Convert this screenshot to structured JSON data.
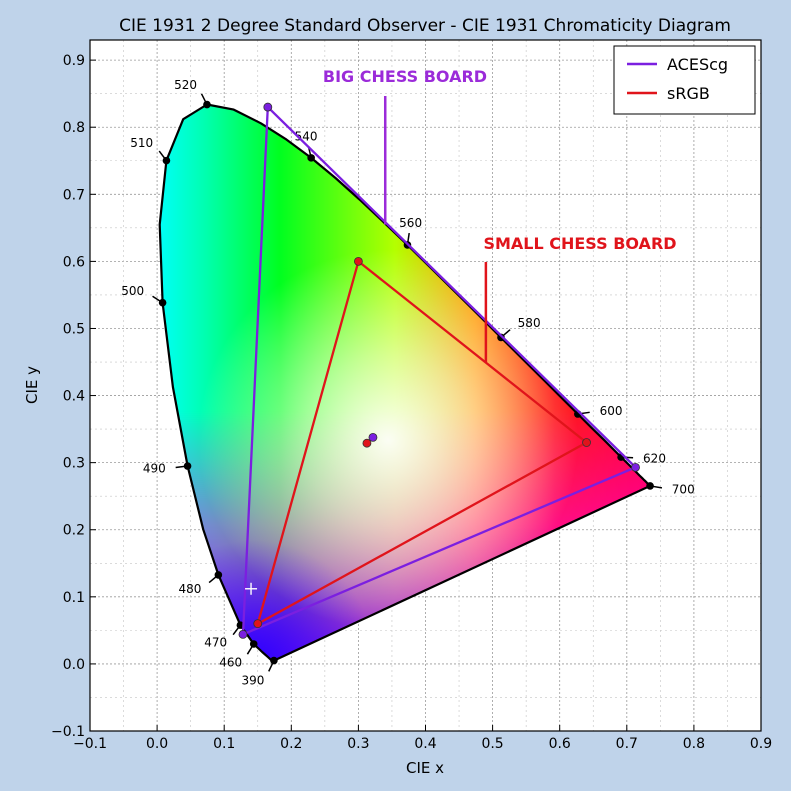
{
  "chart_data": {
    "type": "scatter",
    "title": "CIE 1931 2 Degree Standard Observer - CIE 1931 Chromaticity Diagram",
    "xlabel": "CIE x",
    "ylabel": "CIE y",
    "xlim": [
      -0.1,
      0.9
    ],
    "ylim": [
      -0.1,
      0.93
    ],
    "grid": true,
    "legend_position": "top-right",
    "x_ticks": [
      "−0.1",
      "0.0",
      "0.1",
      "0.2",
      "0.3",
      "0.4",
      "0.5",
      "0.6",
      "0.7",
      "0.8",
      "0.9"
    ],
    "y_ticks": [
      "−0.1",
      "0.0",
      "0.1",
      "0.2",
      "0.3",
      "0.4",
      "0.5",
      "0.6",
      "0.7",
      "0.8",
      "0.9"
    ],
    "spectral_locus": [
      [
        0.1741,
        0.005
      ],
      [
        0.1738,
        0.0049
      ],
      [
        0.1733,
        0.0048
      ],
      [
        0.1726,
        0.0048
      ],
      [
        0.1714,
        0.0051
      ],
      [
        0.1689,
        0.0069
      ],
      [
        0.1644,
        0.0109
      ],
      [
        0.1566,
        0.0177
      ],
      [
        0.144,
        0.0297
      ],
      [
        0.1241,
        0.0578
      ],
      [
        0.0913,
        0.1327
      ],
      [
        0.0687,
        0.2007
      ],
      [
        0.0454,
        0.295
      ],
      [
        0.0235,
        0.4127
      ],
      [
        0.0082,
        0.5384
      ],
      [
        0.0039,
        0.6548
      ],
      [
        0.0139,
        0.7502
      ],
      [
        0.0389,
        0.812
      ],
      [
        0.0743,
        0.8338
      ],
      [
        0.1142,
        0.8262
      ],
      [
        0.1547,
        0.8059
      ],
      [
        0.1929,
        0.7816
      ],
      [
        0.2296,
        0.7543
      ],
      [
        0.2658,
        0.7243
      ],
      [
        0.3016,
        0.6923
      ],
      [
        0.3373,
        0.6589
      ],
      [
        0.3731,
        0.6245
      ],
      [
        0.4087,
        0.5896
      ],
      [
        0.4441,
        0.5547
      ],
      [
        0.4788,
        0.5202
      ],
      [
        0.5125,
        0.4866
      ],
      [
        0.5448,
        0.4544
      ],
      [
        0.5752,
        0.4242
      ],
      [
        0.6029,
        0.3965
      ],
      [
        0.627,
        0.3725
      ],
      [
        0.6482,
        0.3514
      ],
      [
        0.6658,
        0.334
      ],
      [
        0.6801,
        0.3197
      ],
      [
        0.6915,
        0.3083
      ],
      [
        0.7006,
        0.2993
      ],
      [
        0.7079,
        0.292
      ],
      [
        0.714,
        0.2859
      ],
      [
        0.719,
        0.2809
      ],
      [
        0.723,
        0.277
      ],
      [
        0.726,
        0.274
      ],
      [
        0.7283,
        0.2717
      ],
      [
        0.73,
        0.27
      ],
      [
        0.7311,
        0.2689
      ],
      [
        0.732,
        0.268
      ],
      [
        0.7334,
        0.2666
      ],
      [
        0.7347,
        0.2653
      ]
    ],
    "wavelength_labels": [
      {
        "label": "390",
        "x": 0.1741,
        "y": 0.005
      },
      {
        "label": "460",
        "x": 0.144,
        "y": 0.0297
      },
      {
        "label": "470",
        "x": 0.1241,
        "y": 0.0578
      },
      {
        "label": "480",
        "x": 0.0913,
        "y": 0.1327
      },
      {
        "label": "490",
        "x": 0.0454,
        "y": 0.295
      },
      {
        "label": "500",
        "x": 0.0082,
        "y": 0.5384
      },
      {
        "label": "510",
        "x": 0.0139,
        "y": 0.7502
      },
      {
        "label": "520",
        "x": 0.0743,
        "y": 0.8338
      },
      {
        "label": "540",
        "x": 0.2296,
        "y": 0.7543
      },
      {
        "label": "560",
        "x": 0.3731,
        "y": 0.6245
      },
      {
        "label": "580",
        "x": 0.5125,
        "y": 0.4866
      },
      {
        "label": "600",
        "x": 0.627,
        "y": 0.3725
      },
      {
        "label": "620",
        "x": 0.6915,
        "y": 0.3083
      },
      {
        "label": "700",
        "x": 0.7347,
        "y": 0.2653
      }
    ],
    "series": [
      {
        "name": "ACEScg",
        "color": "#7b1fe0",
        "closed": true,
        "points": [
          [
            0.713,
            0.293
          ],
          [
            0.165,
            0.83
          ],
          [
            0.128,
            0.044
          ]
        ],
        "whitepoint": [
          0.32168,
          0.33767
        ]
      },
      {
        "name": "sRGB",
        "color": "#e0141b",
        "closed": true,
        "points": [
          [
            0.64,
            0.33
          ],
          [
            0.3,
            0.6
          ],
          [
            0.15,
            0.06
          ]
        ],
        "whitepoint": [
          0.3127,
          0.329
        ]
      }
    ],
    "cross_marker": [
      0.14,
      0.112
    ],
    "annotations": [
      {
        "text": "BIG CHESS BOARD",
        "color": "#9b2bd9",
        "x": 0.34,
        "y": 0.655
      },
      {
        "text": "SMALL CHESS BOARD",
        "color": "#e0141b",
        "x": 0.49,
        "y": 0.45
      }
    ]
  }
}
